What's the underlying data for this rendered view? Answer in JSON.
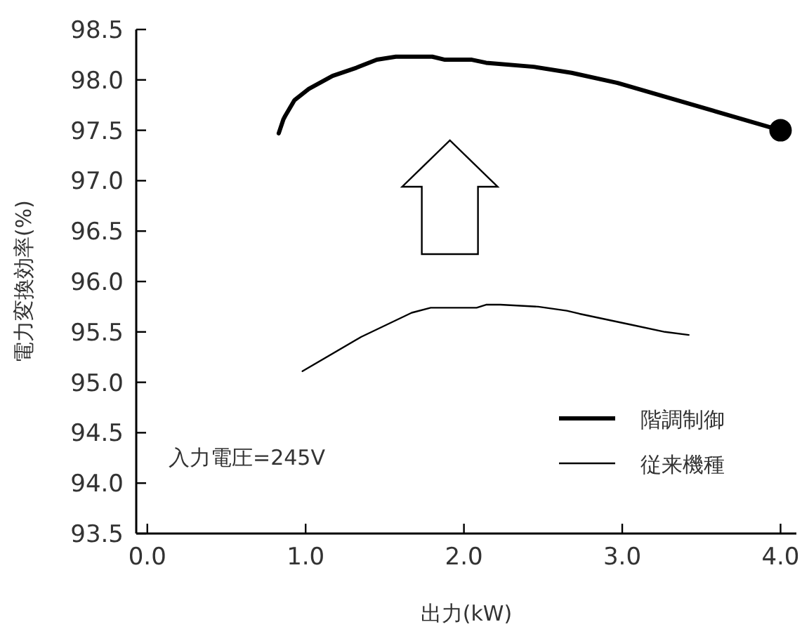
{
  "chart_data": {
    "type": "line",
    "xlabel": "出力(kW)",
    "ylabel": "電力変換効率(%)",
    "xlim": [
      -0.07,
      4.1
    ],
    "xticks": [
      {
        "value": 0,
        "label": "0.0"
      },
      {
        "value": 1,
        "label": "1.0"
      },
      {
        "value": 2,
        "label": "2.0"
      },
      {
        "value": 3,
        "label": "3.0"
      },
      {
        "value": 4,
        "label": "4.0"
      }
    ],
    "ylim": [
      93.5,
      98.5
    ],
    "yticks": [
      {
        "value": 93.5,
        "label": "93.5"
      },
      {
        "value": 94,
        "label": "94.0"
      },
      {
        "value": 94.5,
        "label": "94.5"
      },
      {
        "value": 95,
        "label": "95.0"
      },
      {
        "value": 95.5,
        "label": "95.5"
      },
      {
        "value": 96,
        "label": "96.0"
      },
      {
        "value": 96.5,
        "label": "96.5"
      },
      {
        "value": 97,
        "label": "97.0"
      },
      {
        "value": 97.5,
        "label": "97.5"
      },
      {
        "value": 98,
        "label": "98.0"
      },
      {
        "value": 98.5,
        "label": "98.5"
      }
    ],
    "grid": false,
    "legend": "bottom right",
    "annotations": [
      "入力電圧=245V"
    ],
    "series": [
      {
        "name": "階調制御",
        "color": "#000000",
        "x": [
          0.83,
          0.86,
          0.87,
          0.93,
          1.02,
          1.17,
          1.32,
          1.45,
          1.57,
          1.8,
          1.88,
          2.05,
          2.14,
          2.44,
          2.68,
          2.97,
          4.0
        ],
        "values": [
          97.47,
          97.61,
          97.64,
          97.8,
          97.91,
          98.04,
          98.12,
          98.2,
          98.23,
          98.23,
          98.2,
          98.2,
          98.17,
          98.13,
          98.07,
          97.97,
          97.5
        ]
      },
      {
        "name": "従来機種",
        "color": "#000000",
        "x": [
          0.98,
          1.35,
          1.67,
          1.79,
          2.08,
          2.14,
          2.23,
          2.47,
          2.65,
          2.73,
          3.06,
          3.27,
          3.42
        ],
        "values": [
          95.11,
          95.45,
          95.69,
          95.74,
          95.74,
          95.77,
          95.77,
          95.75,
          95.71,
          95.68,
          95.57,
          95.5,
          95.47
        ]
      },
      {
        "type": "scatter",
        "color": "#000000",
        "x": [
          4.0
        ],
        "values": [
          97.5
        ]
      }
    ]
  }
}
